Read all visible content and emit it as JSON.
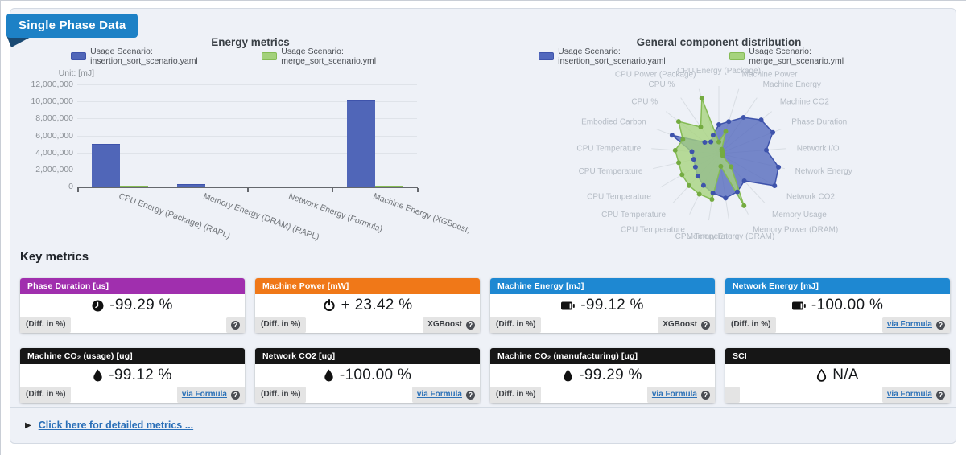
{
  "badge": {
    "label": "Single Phase Data",
    "color": "#1d81c6",
    "fold_color": "#1a4a73"
  },
  "details": {
    "label": "Click here for detailed metrics ..."
  },
  "key_metrics": {
    "heading": "Key metrics",
    "cards": [
      {
        "title": "Phase Duration [us]",
        "header_color": "#a02fae",
        "icon": "clock-icon",
        "value": "-99.29 %",
        "footer_left": "(Diff. in %)",
        "footer_right_label": "",
        "footer_right_is_link": false
      },
      {
        "title": "Machine Power [mW]",
        "header_color": "#f07818",
        "icon": "power-icon",
        "value": "+ 23.42 %",
        "footer_left": "(Diff. in %)",
        "footer_right_label": "XGBoost",
        "footer_right_is_link": false
      },
      {
        "title": "Machine Energy [mJ]",
        "header_color": "#1e88d2",
        "icon": "battery-icon",
        "value": "-99.12 %",
        "footer_left": "(Diff. in %)",
        "footer_right_label": "XGBoost",
        "footer_right_is_link": false
      },
      {
        "title": "Network Energy [mJ]",
        "header_color": "#1e88d2",
        "icon": "battery-icon",
        "value": "-100.00 %",
        "footer_left": "(Diff. in %)",
        "footer_right_label": "via Formula",
        "footer_right_is_link": true
      },
      {
        "title": "Machine CO₂ (usage) [ug]",
        "header_color": "#161616",
        "icon": "droplet-icon",
        "value": "-99.12 %",
        "footer_left": "(Diff. in %)",
        "footer_right_label": "via Formula",
        "footer_right_is_link": true
      },
      {
        "title": "Network CO2 [ug]",
        "header_color": "#161616",
        "icon": "droplet-icon",
        "value": "-100.00 %",
        "footer_left": "(Diff. in %)",
        "footer_right_label": "via Formula",
        "footer_right_is_link": true
      },
      {
        "title": "Machine CO₂ (manufacturing) [ug]",
        "header_color": "#161616",
        "icon": "droplet-icon",
        "value": "-99.29 %",
        "footer_left": "(Diff. in %)",
        "footer_right_label": "via Formula",
        "footer_right_is_link": true
      },
      {
        "title": "SCI",
        "header_color": "#161616",
        "icon": "droplet-outline-icon",
        "value": "N/A",
        "footer_left": "",
        "footer_right_label": "via Formula",
        "footer_right_is_link": true
      }
    ]
  },
  "chart_data": [
    {
      "type": "bar",
      "title": "Energy metrics",
      "unit_label": "Unit: [mJ]",
      "categories": [
        "CPU Energy (Package) (RAPL)",
        "Memory Energy (DRAM) (RAPL)",
        "Network Energy (Formula)",
        "Machine Energy (XGBoost,"
      ],
      "series": [
        {
          "name": "Usage Scenario: insertion_sort_scenario.yaml",
          "color": "#5066b8",
          "border": "#3e53ab",
          "values": [
            5000000,
            300000,
            0,
            10100000
          ]
        },
        {
          "name": "Usage Scenario: merge_sort_scenario.yml",
          "color": "#a3d17b",
          "border": "#85bb55",
          "values": [
            40000,
            0,
            0,
            89000
          ]
        }
      ],
      "ylim": [
        0,
        12000000
      ],
      "yticks": [
        "12,000,000",
        "10,000,000",
        "8,000,000",
        "6,000,000",
        "4,000,000",
        "2,000,000",
        "0"
      ],
      "grid": true,
      "legend_position": "top"
    },
    {
      "type": "radar",
      "title": "General component distribution",
      "axes": [
        "CPU Energy (Package)",
        "Machine Power",
        "Machine Energy",
        "Machine CO2",
        "Phase Duration",
        "Network I/O",
        "Network Energy",
        "Network CO2",
        "Memory Usage",
        "Memory Power (DRAM)",
        "Memory Energy (DRAM)",
        "CPU Temperature",
        "CPU Temperature",
        "CPU Temperature",
        "CPU Temperature",
        "CPU Temperature",
        "CPU Temperature",
        "Embodied Carbon",
        "CPU %",
        "CPU %",
        "CPU Power (Package)"
      ],
      "rmax": 1,
      "series": [
        {
          "name": "Usage Scenario: insertion_sort_scenario.yaml",
          "color": "#5268bd",
          "border": "#3e53ab",
          "values": [
            0.45,
            0.52,
            0.68,
            0.84,
            0.9,
            0.74,
            0.95,
            1.0,
            0.58,
            0.66,
            0.7,
            0.62,
            0.55,
            0.48,
            0.42,
            0.4,
            0.42,
            0.78,
            0.28,
            0.22,
            0.3
          ]
        },
        {
          "name": "Usage Scenario: merge_sort_scenario.yml",
          "color": "#a6d37d",
          "border": "#85bb55",
          "values": [
            0.18,
            0.36,
            0.08,
            0.06,
            0.06,
            0.05,
            0.05,
            0.07,
            0.28,
            0.9,
            0.2,
            0.72,
            0.7,
            0.68,
            0.66,
            0.64,
            0.68,
            0.6,
            0.8,
            0.5,
            0.9
          ]
        }
      ],
      "legend_position": "top"
    }
  ]
}
